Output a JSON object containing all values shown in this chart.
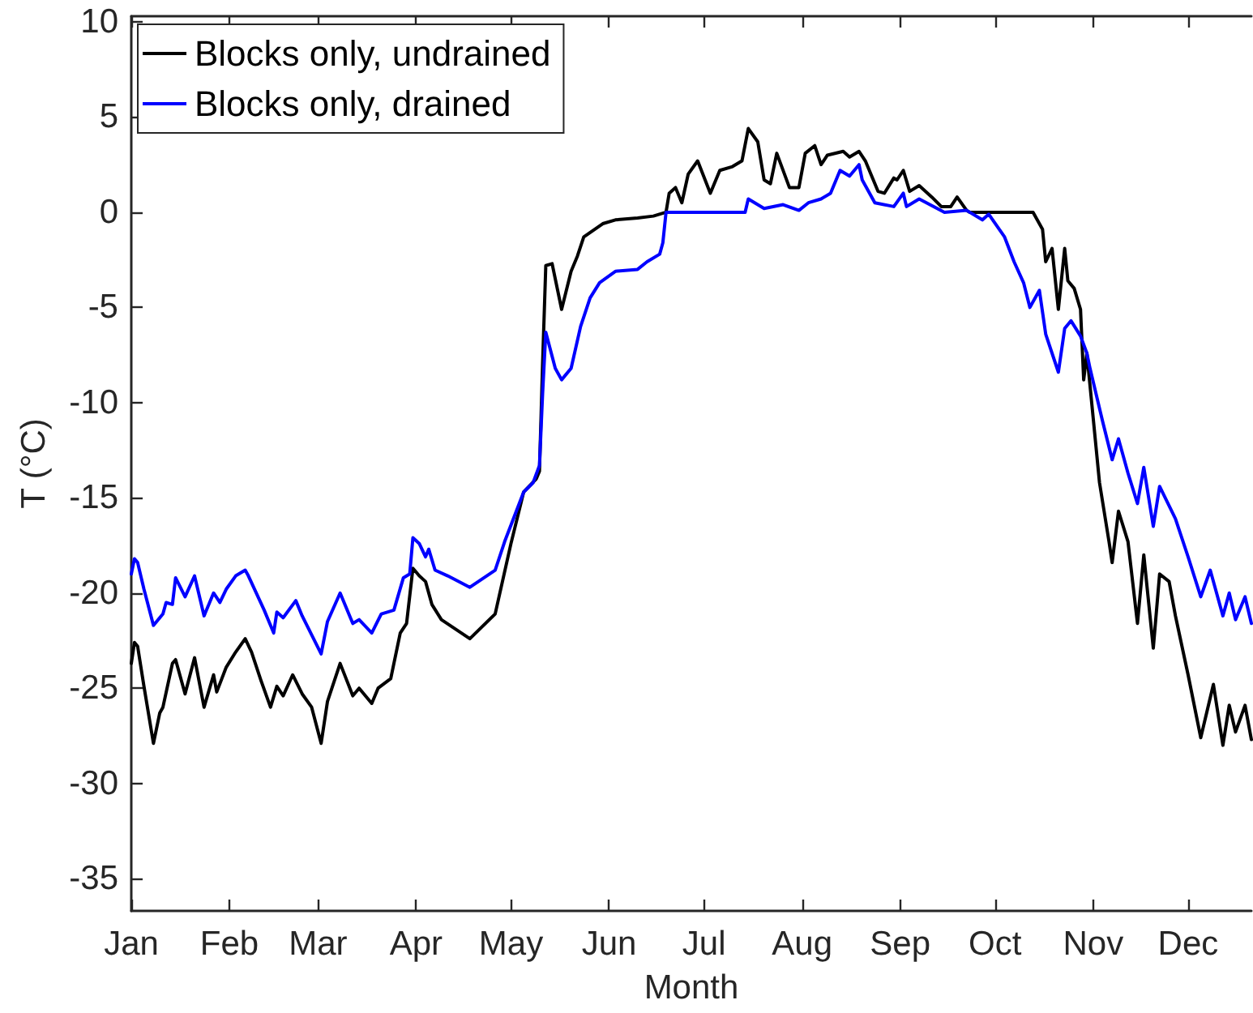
{
  "chart_data": {
    "type": "line",
    "xlabel": "Month",
    "ylabel": "T (°C)",
    "xlim": [
      "--01-01",
      "--12-21"
    ],
    "xticks": [
      {
        "value": "--01-01",
        "label": "Jan"
      },
      {
        "value": "--02-01",
        "label": "Feb"
      },
      {
        "value": "--03-01",
        "label": "Mar"
      },
      {
        "value": "--04-01",
        "label": "Apr"
      },
      {
        "value": "--05-01",
        "label": "May"
      },
      {
        "value": "--06-01",
        "label": "Jun"
      },
      {
        "value": "--07-01",
        "label": "Jul"
      },
      {
        "value": "--08-01",
        "label": "Aug"
      },
      {
        "value": "--09-01",
        "label": "Sep"
      },
      {
        "value": "--10-01",
        "label": "Oct"
      },
      {
        "value": "--11-01",
        "label": "Nov"
      },
      {
        "value": "--12-01",
        "label": "Dec"
      }
    ],
    "ylim": [
      -36.7,
      10.3
    ],
    "yticks": [
      -35,
      -30,
      -25,
      -20,
      -15,
      -10,
      -5,
      0,
      5,
      10
    ],
    "legend": "top left",
    "series": [
      {
        "name": "Blocks only, undrained",
        "color": "#000000",
        "x": [
          "--01-01",
          "--01-02",
          "--01-03",
          "--01-05",
          "--01-08",
          "--01-10",
          "--01-11",
          "--01-14",
          "--01-15",
          "--01-18",
          "--01-21",
          "--01-24",
          "--01-27",
          "--01-28",
          "--01-31",
          "--02-03",
          "--02-06",
          "--02-08",
          "--02-11",
          "--02-14",
          "--02-16",
          "--02-18",
          "--02-21",
          "--02-24",
          "--02-27",
          "--03-02",
          "--03-04",
          "--03-08",
          "--03-12",
          "--03-14",
          "--03-18",
          "--03-20",
          "--03-24",
          "--03-27",
          "--03-29",
          "--03-31",
          "--04-02",
          "--04-04",
          "--04-06",
          "--04-09",
          "--04-18",
          "--04-26",
          "--05-01",
          "--05-05",
          "--05-09",
          "--05-10",
          "--05-11",
          "--05-12",
          "--05-14",
          "--05-17",
          "--05-20",
          "--05-22",
          "--05-24",
          "--05-30",
          "--06-03",
          "--06-10",
          "--06-15",
          "--06-19",
          "--06-20",
          "--06-22",
          "--06-24",
          "--06-26",
          "--06-29",
          "--07-03",
          "--07-06",
          "--07-10",
          "--07-13",
          "--07-15",
          "--07-18",
          "--07-20",
          "--07-22",
          "--07-24",
          "--07-28",
          "--07-31",
          "--08-02",
          "--08-05",
          "--08-07",
          "--08-09",
          "--08-14",
          "--08-16",
          "--08-19",
          "--08-21",
          "--08-25",
          "--08-27",
          "--08-30",
          "--08-31",
          "--09-02",
          "--09-04",
          "--09-07",
          "--09-11",
          "--09-14",
          "--09-17",
          "--09-19",
          "--09-22",
          "--09-23",
          "--10-13",
          "--10-16",
          "--10-17",
          "--10-19",
          "--10-21",
          "--10-23",
          "--10-24",
          "--10-26",
          "--10-28",
          "--10-29",
          "--10-30",
          "--11-01",
          "--11-03",
          "--11-06",
          "--11-07",
          "--11-09",
          "--11-12",
          "--11-15",
          "--11-17",
          "--11-20",
          "--11-22",
          "--11-25",
          "--11-27",
          "--12-01",
          "--12-05",
          "--12-09",
          "--12-12",
          "--12-14",
          "--12-16",
          "--12-19",
          "--12-21"
        ],
        "values": [
          -23.7,
          -22.6,
          -22.8,
          -24.9,
          -27.9,
          -26.3,
          -26.0,
          -23.7,
          -23.5,
          -25.3,
          -23.4,
          -26.0,
          -24.3,
          -25.2,
          -23.9,
          -23.1,
          -22.4,
          -23.1,
          -24.6,
          -26.0,
          -24.9,
          -25.4,
          -24.3,
          -25.3,
          -26.0,
          -27.9,
          -25.7,
          -23.7,
          -25.4,
          -25.0,
          -25.8,
          -25.0,
          -24.5,
          -22.1,
          -21.6,
          -18.7,
          -19.1,
          -19.4,
          -20.6,
          -21.4,
          -22.4,
          -21.1,
          -17.4,
          -14.7,
          -14.0,
          -13.6,
          -7.9,
          -2.8,
          -2.7,
          -5.1,
          -3.1,
          -2.3,
          -1.3,
          -0.6,
          -0.4,
          -0.3,
          -0.2,
          0,
          1.0,
          1.3,
          0.5,
          2.0,
          2.7,
          1.0,
          2.2,
          2.4,
          2.7,
          4.4,
          3.7,
          1.7,
          1.5,
          3.1,
          1.3,
          1.3,
          3.1,
          3.5,
          2.5,
          3.0,
          3.2,
          2.9,
          3.2,
          2.7,
          1.1,
          1.0,
          1.8,
          1.7,
          2.2,
          1.1,
          1.4,
          0.8,
          0.3,
          0.3,
          0.8,
          0.1,
          0,
          0,
          -0.9,
          -2.6,
          -1.9,
          -5.1,
          -1.9,
          -3.6,
          -4.0,
          -5.1,
          -8.8,
          -7.4,
          -10.8,
          -14.2,
          -17.3,
          -18.4,
          -15.7,
          -17.3,
          -21.6,
          -18.0,
          -22.9,
          -19.0,
          -19.4,
          -21.2,
          -24.3,
          -27.6,
          -24.8,
          -28.0,
          -25.9,
          -27.3,
          -25.9,
          -27.7
        ]
      },
      {
        "name": "Blocks only, drained",
        "color": "#0000ff",
        "x": [
          "--01-01",
          "--01-02",
          "--01-03",
          "--01-05",
          "--01-08",
          "--01-11",
          "--01-12",
          "--01-14",
          "--01-15",
          "--01-18",
          "--01-21",
          "--01-24",
          "--01-27",
          "--01-29",
          "--01-31",
          "--02-03",
          "--02-06",
          "--02-07",
          "--02-12",
          "--02-15",
          "--02-16",
          "--02-18",
          "--02-22",
          "--02-24",
          "--02-27",
          "--03-02",
          "--03-04",
          "--03-08",
          "--03-12",
          "--03-14",
          "--03-18",
          "--03-21",
          "--03-25",
          "--03-28",
          "--03-30",
          "--03-31",
          "--04-02",
          "--04-04",
          "--04-05",
          "--04-07",
          "--04-11",
          "--04-18",
          "--04-26",
          "--04-29",
          "--05-05",
          "--05-08",
          "--05-10",
          "--05-11",
          "--05-12",
          "--05-15",
          "--05-17",
          "--05-20",
          "--05-23",
          "--05-26",
          "--05-29",
          "--06-03",
          "--06-10",
          "--06-13",
          "--06-17",
          "--06-18",
          "--06-19",
          "--07-14",
          "--07-15",
          "--07-20",
          "--07-26",
          "--07-31",
          "--08-03",
          "--08-07",
          "--08-10",
          "--08-13",
          "--08-16",
          "--08-19",
          "--08-20",
          "--08-24",
          "--08-30",
          "--09-02",
          "--09-03",
          "--09-07",
          "--09-15",
          "--09-22",
          "--09-27",
          "--09-29",
          "--10-04",
          "--10-07",
          "--10-10",
          "--10-12",
          "--10-15",
          "--10-17",
          "--10-21",
          "--10-23",
          "--10-25",
          "--10-28",
          "--10-30",
          "--10-31",
          "--11-04",
          "--11-07",
          "--11-09",
          "--11-12",
          "--11-15",
          "--11-17",
          "--11-20",
          "--11-22",
          "--11-27",
          "--12-01",
          "--12-05",
          "--12-08",
          "--12-12",
          "--12-14",
          "--12-16",
          "--12-19",
          "--12-21"
        ],
        "values": [
          -19.0,
          -18.2,
          -18.4,
          -19.8,
          -21.7,
          -21.1,
          -20.5,
          -20.6,
          -19.2,
          -20.2,
          -19.1,
          -21.2,
          -20.0,
          -20.5,
          -19.8,
          -19.1,
          -18.8,
          -19.1,
          -20.9,
          -22.1,
          -21.0,
          -21.3,
          -20.4,
          -21.2,
          -22.2,
          -23.2,
          -21.5,
          -20.0,
          -21.6,
          -21.4,
          -22.1,
          -21.1,
          -20.9,
          -19.2,
          -19.0,
          -17.1,
          -17.4,
          -18.1,
          -17.7,
          -18.8,
          -19.1,
          -19.7,
          -18.8,
          -17.3,
          -14.7,
          -14.2,
          -13.3,
          -9.5,
          -6.3,
          -8.2,
          -8.8,
          -8.2,
          -6.0,
          -4.5,
          -3.7,
          -3.1,
          -3.0,
          -2.6,
          -2.2,
          -1.6,
          0,
          0,
          0.7,
          0.2,
          0.4,
          0.1,
          0.5,
          0.7,
          1.0,
          2.2,
          1.9,
          2.5,
          1.7,
          0.5,
          0.3,
          1.0,
          0.3,
          0.7,
          0,
          0.1,
          -0.4,
          -0.1,
          -1.3,
          -2.6,
          -3.7,
          -5.0,
          -4.1,
          -6.4,
          -8.4,
          -6.1,
          -5.7,
          -6.5,
          -7.4,
          -8.2,
          -11.0,
          -13.0,
          -11.9,
          -13.7,
          -15.3,
          -13.4,
          -16.5,
          -14.4,
          -16.1,
          -18.1,
          -20.2,
          -18.8,
          -21.2,
          -20.0,
          -21.4,
          -20.2,
          -21.6
        ]
      }
    ]
  }
}
